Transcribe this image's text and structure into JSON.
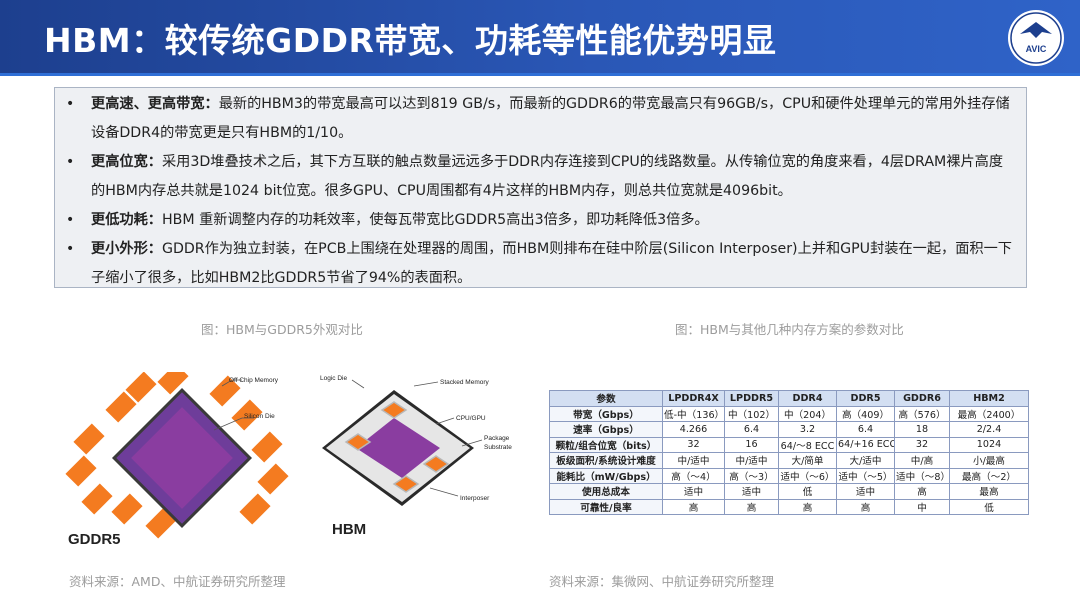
{
  "title": "HBM：较传统GDDR带宽、功耗等性能优势明显",
  "logo": {
    "text": "AVIC"
  },
  "bullets": [
    {
      "key": "更高速、更高带宽：",
      "text": "最新的HBM3的带宽最高可以达到819 GB/s，而最新的GDDR6的带宽最高只有96GB/s，CPU和硬件处理单元的常用外挂存储设备DDR4的带宽更是只有HBM的1/10。"
    },
    {
      "key": "更高位宽：",
      "text": "采用3D堆叠技术之后，其下方互联的触点数量远远多于DDR内存连接到CPU的线路数量。从传输位宽的角度来看，4层DRAM裸片高度的HBM内存总共就是1024 bit位宽。很多GPU、CPU周围都有4片这样的HBM内存，则总共位宽就是4096bit。"
    },
    {
      "key": "更低功耗：",
      "text": "HBM 重新调整内存的功耗效率，使每瓦带宽比GDDR5高出3倍多，即功耗降低3倍多。"
    },
    {
      "key": "更小外形：",
      "text": "GDDR作为独立封装，在PCB上围绕在处理器的周围，而HBM则排布在硅中阶层(Silicon Interposer)上并和GPU封装在一起，面积一下子缩小了很多，比如HBM2比GDDR5节省了94%的表面积。"
    }
  ],
  "left_figure": {
    "caption": "图：HBM与GDDR5外观对比",
    "label_gddr5": "GDDR5",
    "label_hbm": "HBM",
    "ann_off_chip": "Off Chip Memory",
    "ann_silicon_die": "Silicon Die",
    "ann_stacked": "Stacked Memory",
    "ann_logic": "Logic Die",
    "ann_cpu_gpu": "CPU/GPU",
    "ann_package_1": "Package",
    "ann_package_2": "Substrate",
    "ann_interposer": "Interposer",
    "source": "资料来源：AMD、中航证券研究所整理"
  },
  "right_figure": {
    "caption": "图：HBM与其他几种内存方案的参数对比",
    "source": "资料来源：集微网、中航证券研究所整理",
    "headers": [
      "参数",
      "LPDDR4X",
      "LPDDR5",
      "DDR4",
      "DDR5",
      "GDDR6",
      "HBM2"
    ],
    "rows": [
      [
        "带宽（Gbps）",
        "低-中（136）",
        "中（102）",
        "中（204）",
        "高（409）",
        "高（576）",
        "最高（2400）"
      ],
      [
        "速率（Gbps）",
        "4.266",
        "6.4",
        "3.2",
        "6.4",
        "18",
        "2/2.4"
      ],
      [
        "颗粒/组合位宽（bits）",
        "32",
        "16",
        "64/～8 ECC",
        "64/+16 ECC",
        "32",
        "1024"
      ],
      [
        "板级面积/系统设计难度",
        "中/适中",
        "中/适中",
        "大/简单",
        "大/适中",
        "中/高",
        "小/最高"
      ],
      [
        "能耗比（mW/Gbps）",
        "高（～4）",
        "高（～3）",
        "适中（～6）",
        "适中（～5）",
        "适中（～8）",
        "最高（～2）"
      ],
      [
        "使用总成本",
        "适中",
        "适中",
        "低",
        "适中",
        "高",
        "最高"
      ],
      [
        "可靠性/良率",
        "高",
        "高",
        "高",
        "高",
        "中",
        "低"
      ]
    ],
    "highlight_color": "#e02020"
  },
  "colors": {
    "title_bg": "#2a57b6",
    "chip_orange": "#f47b20",
    "die_purple": "#7a2d8e"
  }
}
